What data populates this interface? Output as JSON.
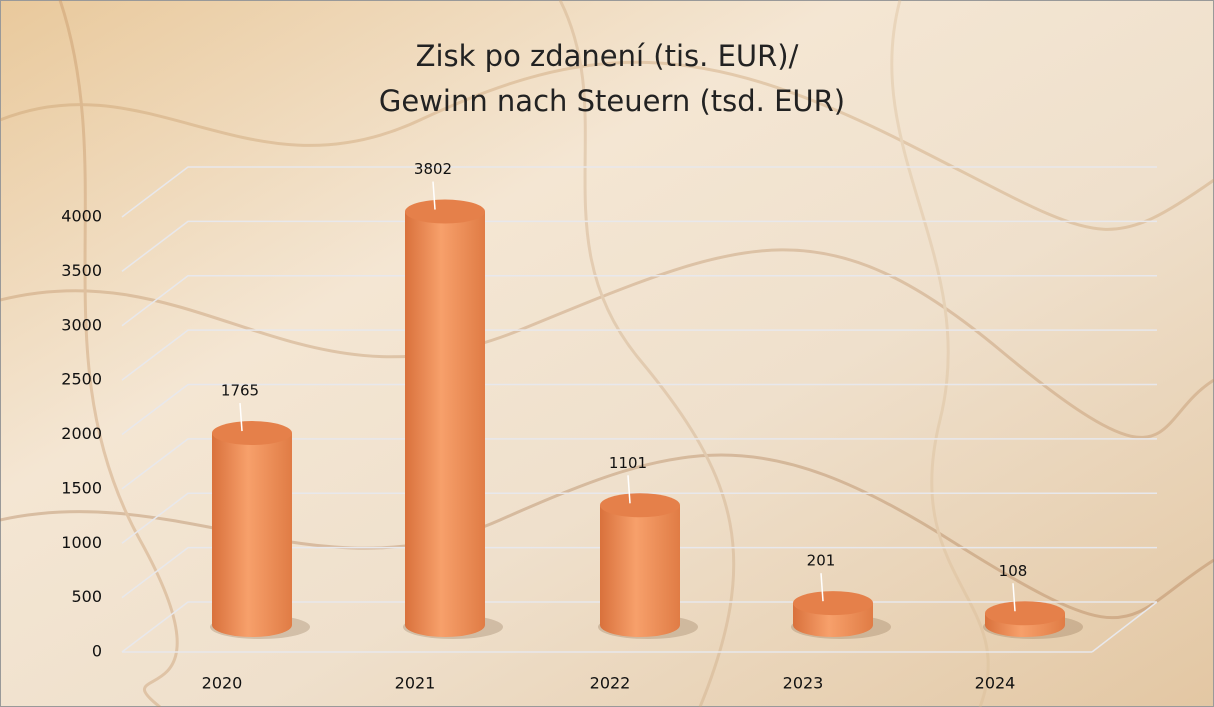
{
  "chart_data": {
    "type": "bar",
    "style": "3d-cylinder",
    "title": [
      "Zisk po zdanení (tis. EUR)/",
      "Gewinn nach Steuern (tsd. EUR)"
    ],
    "categories": [
      "2020",
      "2021",
      "2022",
      "2023",
      "2024"
    ],
    "values": [
      1765,
      3802,
      1101,
      201,
      108
    ],
    "color": "#ee8c57",
    "ylim": [
      0,
      4000
    ],
    "yticks": [
      0,
      500,
      1000,
      1500,
      2000,
      2500,
      3000,
      3500,
      4000
    ],
    "grid": true
  }
}
